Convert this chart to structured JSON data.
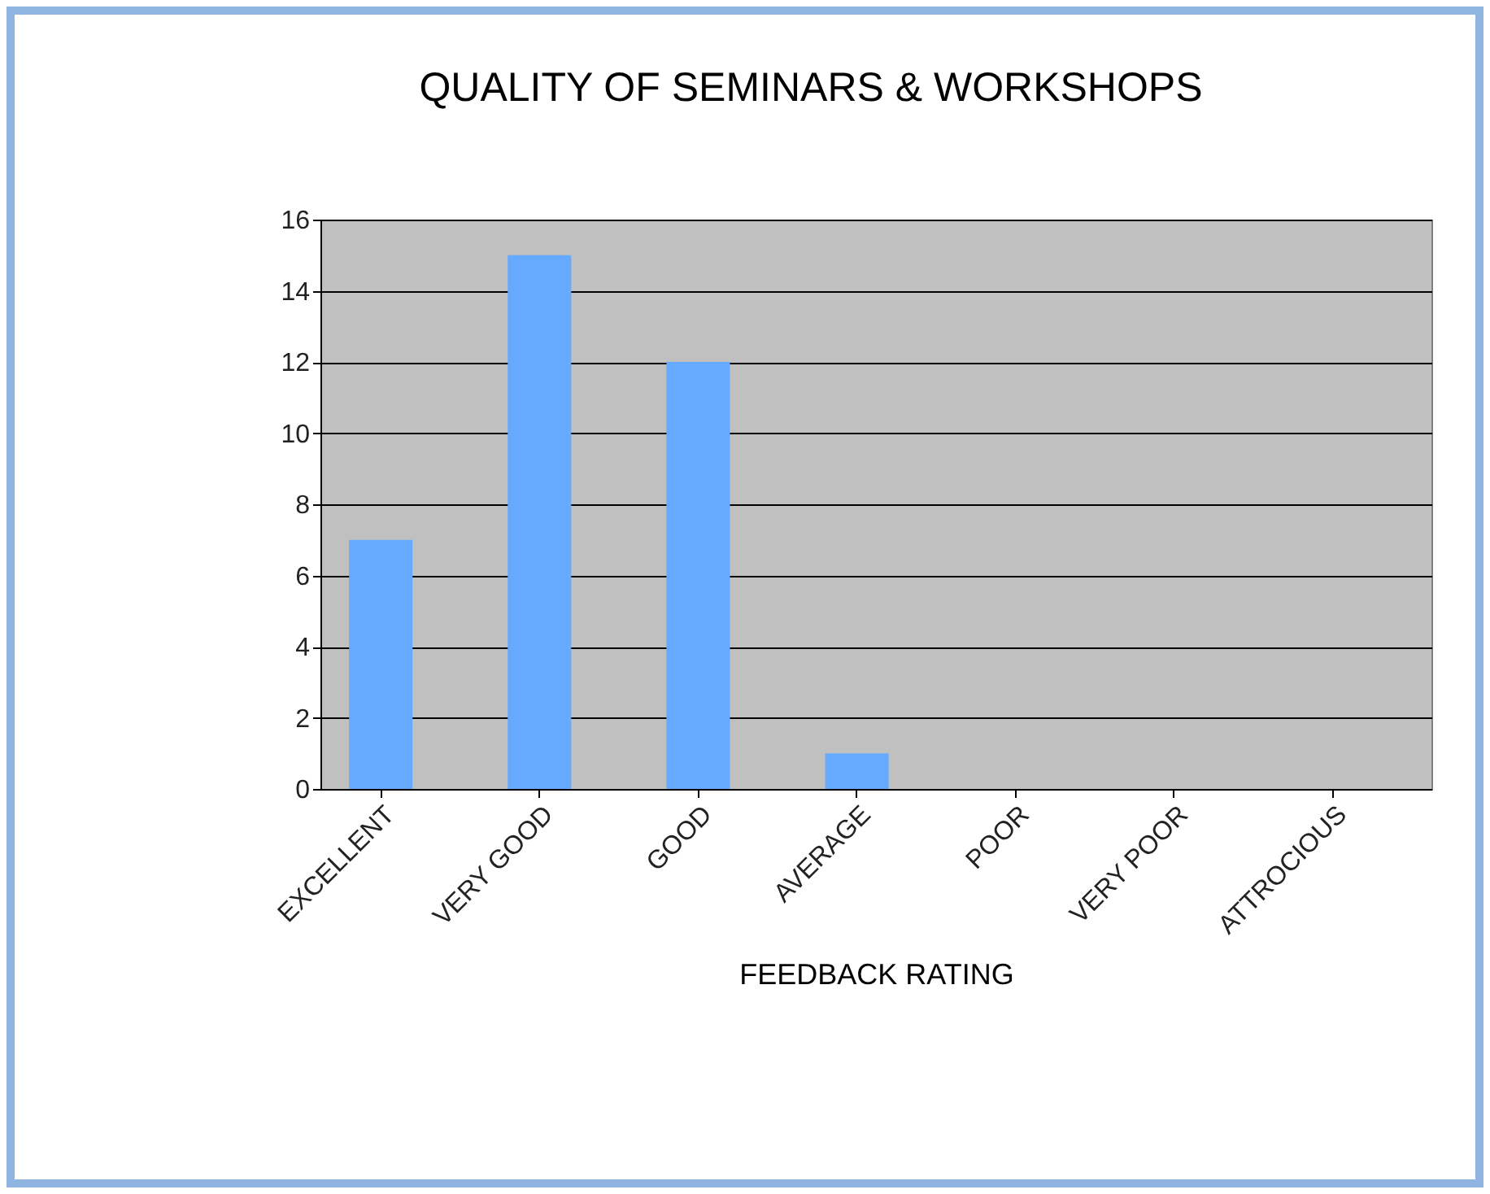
{
  "chart_data": {
    "type": "bar",
    "title": "QUALITY OF SEMINARS & WORKSHOPS",
    "xlabel": "FEEDBACK RATING",
    "categories": [
      "EXCELLENT",
      "VERY GOOD",
      "GOOD",
      "AVERAGE",
      "POOR",
      "VERY POOR",
      "ATTROCIOUS"
    ],
    "values": [
      7,
      15,
      12,
      1,
      0,
      0,
      0
    ],
    "color": "#66aaff",
    "ylim": [
      0,
      16
    ],
    "yticks": [
      0,
      2,
      4,
      6,
      8,
      10,
      12,
      14,
      16
    ],
    "grid": "y"
  }
}
